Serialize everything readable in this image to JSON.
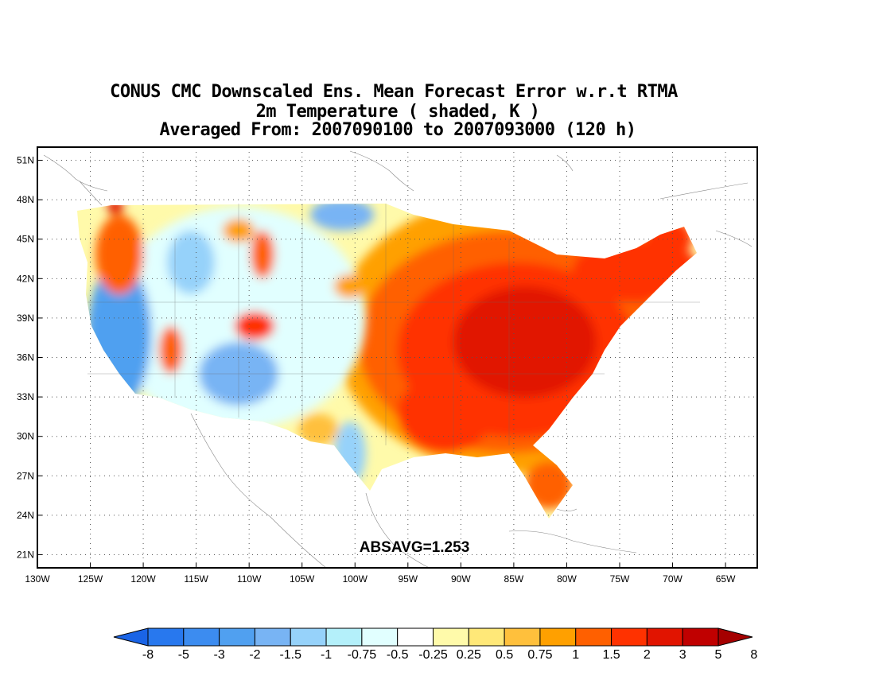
{
  "title": {
    "line1": "CONUS CMC Downscaled Ens. Mean Forecast Error w.r.t RTMA",
    "line2": "2m Temperature ( shaded, K )",
    "line3": "Averaged From: 2007090100 to 2007093000 (120 h)"
  },
  "map": {
    "lon_range": [
      -130,
      -62
    ],
    "lat_range": [
      20,
      52
    ],
    "x_ticks": [
      "130W",
      "125W",
      "120W",
      "115W",
      "110W",
      "105W",
      "100W",
      "95W",
      "90W",
      "85W",
      "80W",
      "75W",
      "70W",
      "65W"
    ],
    "y_ticks": [
      "51N",
      "48N",
      "45N",
      "42N",
      "39N",
      "36N",
      "33N",
      "30N",
      "27N",
      "24N",
      "21N"
    ],
    "grid": "dotted",
    "annotation": "ABSAVG=1.253"
  },
  "colorbar": {
    "labels": [
      "-8",
      "-5",
      "-3",
      "-2",
      "-1.5",
      "-1",
      "-0.75",
      "-0.5",
      "-0.25",
      "0.25",
      "0.5",
      "0.75",
      "1",
      "1.5",
      "2",
      "3",
      "5",
      "8"
    ],
    "colors": [
      "#1a64e6",
      "#2878ee",
      "#3c8cf0",
      "#50a0f0",
      "#78b4f4",
      "#96d2fa",
      "#b4f0fa",
      "#e1ffff",
      "#ffffff",
      "#fffaaa",
      "#ffe878",
      "#ffc03c",
      "#ffa000",
      "#ff6000",
      "#ff3200",
      "#e11400",
      "#c00000",
      "#a50000"
    ]
  },
  "regions": {
    "east_warm": "#e11400",
    "east_mid": "#ff6000",
    "east_light": "#ffa000",
    "west_cool": "#50a0f0",
    "west_light": "#b4f0fa",
    "west_warm": "#ff6000"
  }
}
